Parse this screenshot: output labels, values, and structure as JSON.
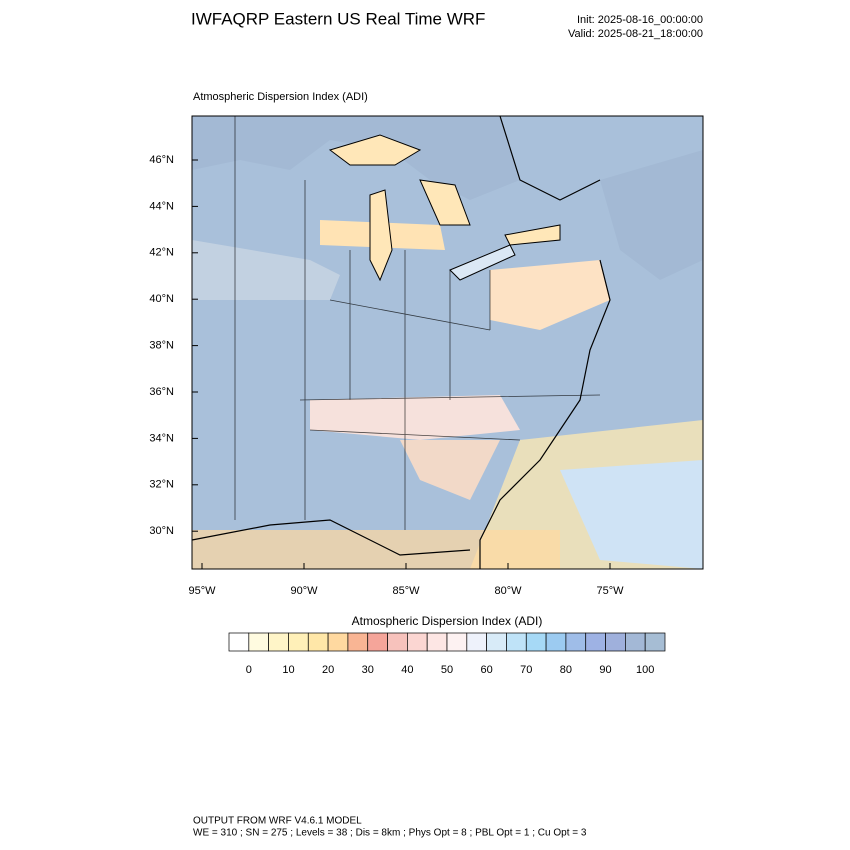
{
  "header": {
    "title": "IWFAQRP Eastern US Real Time WRF",
    "init": "Init: 2025-08-16_00:00:00",
    "valid": "Valid: 2025-08-21_18:00:00"
  },
  "map": {
    "subtitle": "Atmospheric Dispersion Index   (ADI)",
    "lat_labels": [
      "46°N",
      "44°N",
      "42°N",
      "40°N",
      "38°N",
      "36°N",
      "34°N",
      "32°N",
      "30°N"
    ],
    "lon_labels": [
      "95°W",
      "90°W",
      "85°W",
      "80°W",
      "75°W"
    ]
  },
  "colorbar": {
    "title": "Atmospheric Dispersion Index  (ADI)",
    "labels": [
      "0",
      "10",
      "20",
      "30",
      "40",
      "50",
      "60",
      "70",
      "80",
      "90",
      "100"
    ],
    "colors": [
      "#ffffff",
      "#fffbe0",
      "#fff5c8",
      "#fff0b8",
      "#ffe7a8",
      "#ffd9a0",
      "#f9b594",
      "#f5a59a",
      "#f7c2bc",
      "#fbd6d2",
      "#fde6e4",
      "#fdf2f2",
      "#eef2fb",
      "#d8ebf8",
      "#bfe3f8",
      "#a6d9f6",
      "#9ccbf1",
      "#9fbde8",
      "#9eb2e4",
      "#9fb0dc",
      "#a3b8d6",
      "#a6bdd4"
    ]
  },
  "footer": {
    "line1": "OUTPUT FROM WRF V4.6.1 MODEL",
    "line2": "WE = 310 ; SN = 275 ; Levels = 38 ; Dis = 8km ; Phys Opt = 8 ; PBL Opt = 1 ; Cu Opt = 3"
  }
}
